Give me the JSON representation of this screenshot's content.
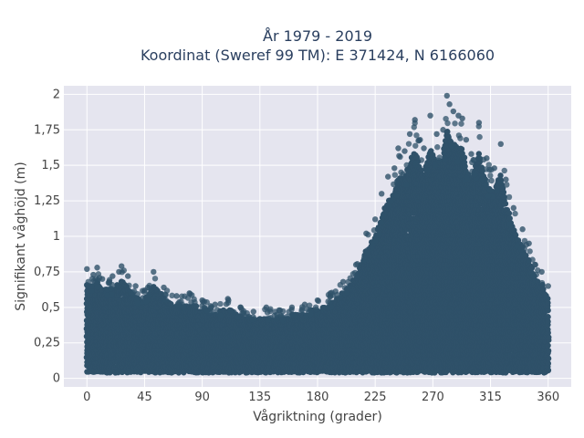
{
  "colors": {
    "plot_background": "#e5e5ef",
    "grid": "#ffffff",
    "marker": "#2f5169",
    "text": "#444444",
    "title": "#2a3f5f"
  },
  "chart_data": {
    "type": "scatter",
    "title": "År 1979 - 2019",
    "subtitle": "Koordinat (Sweref 99 TM): E 371424, N 6166060",
    "xlabel": "Vågriktning (grader)",
    "ylabel": "Signifikant våghöjd (m)",
    "xlim": [
      -18,
      378
    ],
    "ylim": [
      -0.06,
      2.06
    ],
    "grid": true,
    "legend": "none",
    "x_ticks": [
      0,
      45,
      90,
      135,
      180,
      225,
      270,
      315,
      360
    ],
    "x_tick_labels": [
      "0",
      "45",
      "90",
      "135",
      "180",
      "225",
      "270",
      "315",
      "360"
    ],
    "y_ticks": [
      0,
      0.25,
      0.5,
      0.75,
      1,
      1.25,
      1.5,
      1.75,
      2
    ],
    "y_tick_labels": [
      "0",
      "0,25",
      "0,5",
      "0,75",
      "1",
      "1,25",
      "1,5",
      "1,75",
      "2"
    ],
    "series": [
      {
        "values": [
          [
            0,
            0.77
          ],
          [
            5,
            0.73
          ],
          [
            8,
            0.78
          ],
          [
            12,
            0.7
          ],
          [
            20,
            0.72
          ],
          [
            25,
            0.75
          ],
          [
            27,
            0.79
          ],
          [
            32,
            0.72
          ],
          [
            38,
            0.65
          ],
          [
            45,
            0.62
          ],
          [
            52,
            0.75
          ],
          [
            60,
            0.64
          ],
          [
            70,
            0.58
          ],
          [
            80,
            0.6
          ],
          [
            90,
            0.55
          ],
          [
            100,
            0.52
          ],
          [
            110,
            0.56
          ],
          [
            120,
            0.5
          ],
          [
            130,
            0.47
          ],
          [
            140,
            0.5
          ],
          [
            150,
            0.48
          ],
          [
            160,
            0.5
          ],
          [
            170,
            0.52
          ],
          [
            180,
            0.55
          ],
          [
            190,
            0.6
          ],
          [
            200,
            0.68
          ],
          [
            210,
            0.8
          ],
          [
            218,
            1.02
          ],
          [
            225,
            1.12
          ],
          [
            230,
            1.3
          ],
          [
            235,
            1.42
          ],
          [
            240,
            1.48
          ],
          [
            243,
            1.62
          ],
          [
            248,
            1.6
          ],
          [
            252,
            1.72
          ],
          [
            256,
            1.82
          ],
          [
            260,
            1.68
          ],
          [
            263,
            1.62
          ],
          [
            268,
            1.85
          ],
          [
            273,
            1.72
          ],
          [
            278,
            1.75
          ],
          [
            281,
            1.99
          ],
          [
            283,
            1.93
          ],
          [
            286,
            1.88
          ],
          [
            290,
            1.85
          ],
          [
            293,
            1.83
          ],
          [
            296,
            1.68
          ],
          [
            300,
            1.58
          ],
          [
            306,
            1.8
          ],
          [
            312,
            1.55
          ],
          [
            318,
            1.48
          ],
          [
            323,
            1.65
          ],
          [
            327,
            1.4
          ],
          [
            333,
            1.2
          ],
          [
            340,
            1.05
          ],
          [
            345,
            0.95
          ],
          [
            350,
            0.8
          ],
          [
            355,
            0.75
          ],
          [
            360,
            0.65
          ]
        ]
      }
    ]
  }
}
